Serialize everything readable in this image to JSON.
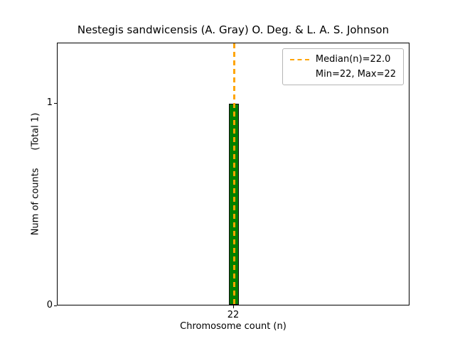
{
  "chart_data": {
    "type": "bar",
    "title": "Nestegis sandwicensis (A. Gray) O. Deg. & L. A. S. Johnson",
    "xlabel": "Chromosome count (n)",
    "ylabel": "Num of counts      (Total 1)",
    "categories": [
      22
    ],
    "values": [
      1
    ],
    "total": 1,
    "xticks": [
      "22"
    ],
    "yticks": [
      "0",
      "1"
    ],
    "ylim": [
      0,
      1.3
    ],
    "grid": false,
    "bar_color": "#008000",
    "bar_edge_color": "#0a0a0a",
    "median_line_color": "#ffa500",
    "median": 22.0,
    "min": 22,
    "max": 22,
    "legend": {
      "position": "upper right",
      "entries": [
        {
          "label": "Median(n)=22.0",
          "line": true
        },
        {
          "label": "Min=22, Max=22",
          "line": false
        }
      ]
    }
  }
}
